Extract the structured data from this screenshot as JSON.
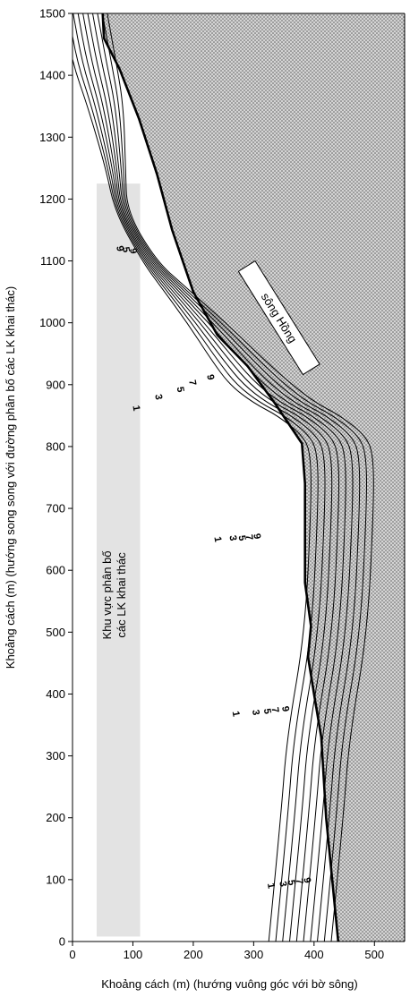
{
  "chart_data": {
    "type": "contour",
    "title": "",
    "xlabel": "Khoảng cách (m) (hướng vuông góc với bờ sông)",
    "ylabel": "Khoảng cách (m) (hướng song song với đường phân bố các LK khai thác)",
    "xlim": [
      0,
      550
    ],
    "ylim": [
      0,
      1500
    ],
    "x_ticks": [
      0,
      100,
      200,
      300,
      400,
      500
    ],
    "y_ticks": [
      0,
      100,
      200,
      300,
      400,
      500,
      600,
      700,
      800,
      900,
      1000,
      1100,
      1200,
      1300,
      1400,
      1500
    ],
    "grid": false,
    "river": {
      "label": "sông Hồng",
      "fill": "stippled gray",
      "bank": [
        [
          440,
          0
        ],
        [
          430,
          100
        ],
        [
          420,
          200
        ],
        [
          412,
          330
        ],
        [
          400,
          400
        ],
        [
          390,
          460
        ],
        [
          395,
          510
        ],
        [
          385,
          580
        ],
        [
          385,
          650
        ],
        [
          385,
          740
        ],
        [
          380,
          805
        ],
        [
          335,
          870
        ],
        [
          290,
          930
        ],
        [
          240,
          980
        ],
        [
          200,
          1050
        ],
        [
          165,
          1150
        ],
        [
          140,
          1240
        ],
        [
          110,
          1330
        ],
        [
          78,
          1410
        ],
        [
          52,
          1460
        ],
        [
          50,
          1500
        ]
      ]
    },
    "well_zone": {
      "label_lines": [
        "Khu vực phân bố",
        "các LK khai thác"
      ],
      "x_range": [
        40,
        112
      ],
      "y_range": [
        8,
        1225
      ],
      "fill": "#e3e3e3"
    },
    "contour_levels": [
      1,
      2,
      3,
      4,
      5,
      6,
      7,
      8,
      9,
      10
    ],
    "contour_labels": [
      "1",
      "3",
      "5",
      "7",
      "9"
    ],
    "contour_shape": {
      "bottom": [
        [
          0,
          0
        ],
        [
          20,
          200
        ],
        [
          30,
          330
        ],
        [
          60,
          500
        ],
        [
          70,
          700
        ],
        [
          70,
          780
        ],
        [
          60,
          815
        ],
        [
          15,
          850
        ],
        [
          -25,
          870
        ],
        [
          -65,
          900
        ],
        [
          -95,
          940
        ],
        [
          -135,
          1000
        ],
        [
          -180,
          1060
        ],
        [
          -210,
          1100
        ],
        [
          -255,
          1180
        ],
        [
          -270,
          1250
        ],
        [
          -300,
          1350
        ],
        [
          -325,
          1420
        ],
        [
          -340,
          1500
        ]
      ],
      "base_x_at_bottom": 325,
      "spacing_low": 11.5,
      "spacing_high": 2.2,
      "squeeze_y": 1110
    },
    "contour_label_positions": [
      {
        "text": "1",
        "x": 328,
        "y": 90
      },
      {
        "text": "3",
        "x": 348,
        "y": 93
      },
      {
        "text": "5",
        "x": 362,
        "y": 95
      },
      {
        "text": "7",
        "x": 375,
        "y": 97
      },
      {
        "text": "9",
        "x": 388,
        "y": 99
      },
      {
        "text": "1",
        "x": 270,
        "y": 368
      },
      {
        "text": "3",
        "x": 303,
        "y": 370
      },
      {
        "text": "5",
        "x": 322,
        "y": 372
      },
      {
        "text": "7",
        "x": 335,
        "y": 374
      },
      {
        "text": "9",
        "x": 352,
        "y": 376
      },
      {
        "text": "1",
        "x": 240,
        "y": 650
      },
      {
        "text": "3",
        "x": 265,
        "y": 652
      },
      {
        "text": "5",
        "x": 280,
        "y": 652
      },
      {
        "text": "7",
        "x": 292,
        "y": 653
      },
      {
        "text": "9",
        "x": 305,
        "y": 655
      },
      {
        "text": "1",
        "x": 105,
        "y": 862
      },
      {
        "text": "3",
        "x": 142,
        "y": 880
      },
      {
        "text": "5",
        "x": 178,
        "y": 892
      },
      {
        "text": "7",
        "x": 198,
        "y": 903
      },
      {
        "text": "9",
        "x": 228,
        "y": 912
      },
      {
        "text": "9",
        "x": 78,
        "y": 1120
      },
      {
        "text": "5",
        "x": 88,
        "y": 1118
      },
      {
        "text": "9",
        "x": 100,
        "y": 1116
      }
    ]
  }
}
